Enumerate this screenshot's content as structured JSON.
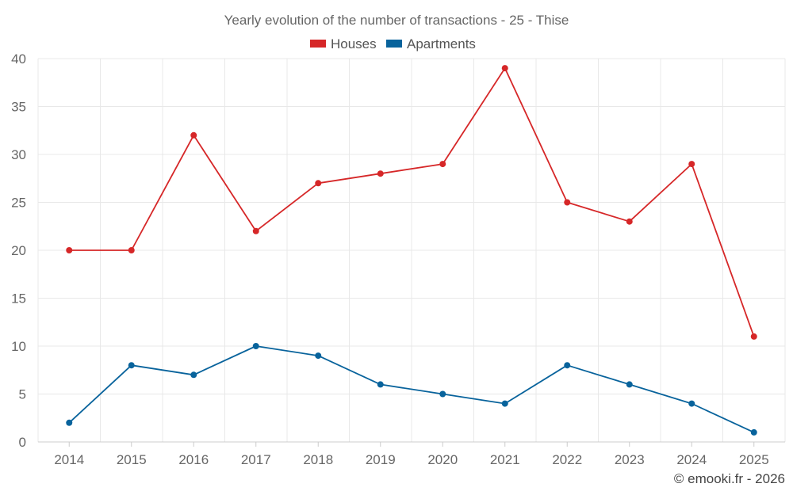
{
  "chart_data": {
    "type": "line",
    "title": "Yearly evolution of the number of transactions - 25 - Thise",
    "categories": [
      "2014",
      "2015",
      "2016",
      "2017",
      "2018",
      "2019",
      "2020",
      "2021",
      "2022",
      "2023",
      "2024",
      "2025"
    ],
    "series": [
      {
        "name": "Houses",
        "color": "#d62728",
        "values": [
          20,
          20,
          32,
          22,
          27,
          28,
          29,
          39,
          25,
          23,
          29,
          11
        ]
      },
      {
        "name": "Apartments",
        "color": "#08639c",
        "values": [
          2,
          8,
          7,
          10,
          9,
          6,
          5,
          4,
          8,
          6,
          4,
          1
        ]
      }
    ],
    "ylim": [
      0,
      40
    ],
    "yticks": [
      "0",
      "5",
      "10",
      "15",
      "20",
      "25",
      "30",
      "35",
      "40"
    ],
    "ytick_values": [
      0,
      5,
      10,
      15,
      20,
      25,
      30,
      35,
      40
    ],
    "xlabel": "",
    "ylabel": "",
    "grid": true,
    "legend": "top-center"
  },
  "credit": "© emooki.fr - 2026"
}
